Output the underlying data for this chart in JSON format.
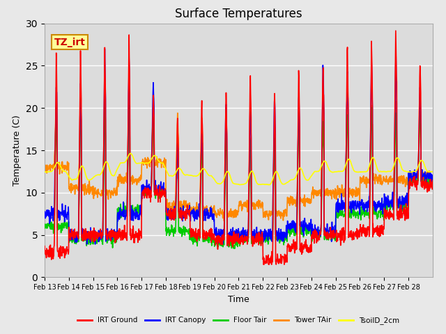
{
  "title": "Surface Temperatures",
  "xlabel": "Time",
  "ylabel": "Temperature (C)",
  "ylim": [
    0,
    30
  ],
  "tick_labels": [
    "Feb 13",
    "Feb 14",
    "Feb 15",
    "Feb 16",
    "Feb 17",
    "Feb 18",
    "Feb 19",
    "Feb 20",
    "Feb 21",
    "Feb 22",
    "Feb 23",
    "Feb 24",
    "Feb 25",
    "Feb 26",
    "Feb 27",
    "Feb 28"
  ],
  "series_colors": {
    "IRT Ground": "#ff0000",
    "IRT Canopy": "#0000ff",
    "Floor Tair": "#00cc00",
    "Tower TAir": "#ff8800",
    "TsoilD_2cm": "#ffff00"
  },
  "series_linewidth": 1.2,
  "fig_bg_color": "#e8e8e8",
  "plot_bg_color": "#dcdcdc",
  "annotation_text": "TZ_irt",
  "annotation_bg": "#ffff99",
  "annotation_border": "#cc8800",
  "legend_labels": [
    "IRT Ground",
    "IRT Canopy",
    "Floor Tair",
    "Tower TAir",
    "TsoilD_2cm"
  ],
  "legend_colors": [
    "#ff0000",
    "#0000ff",
    "#00cc00",
    "#ff8800",
    "#ffff00"
  ],
  "yticks": [
    0,
    5,
    10,
    15,
    20,
    25,
    30
  ],
  "n_days": 16,
  "pts_per_day": 96
}
